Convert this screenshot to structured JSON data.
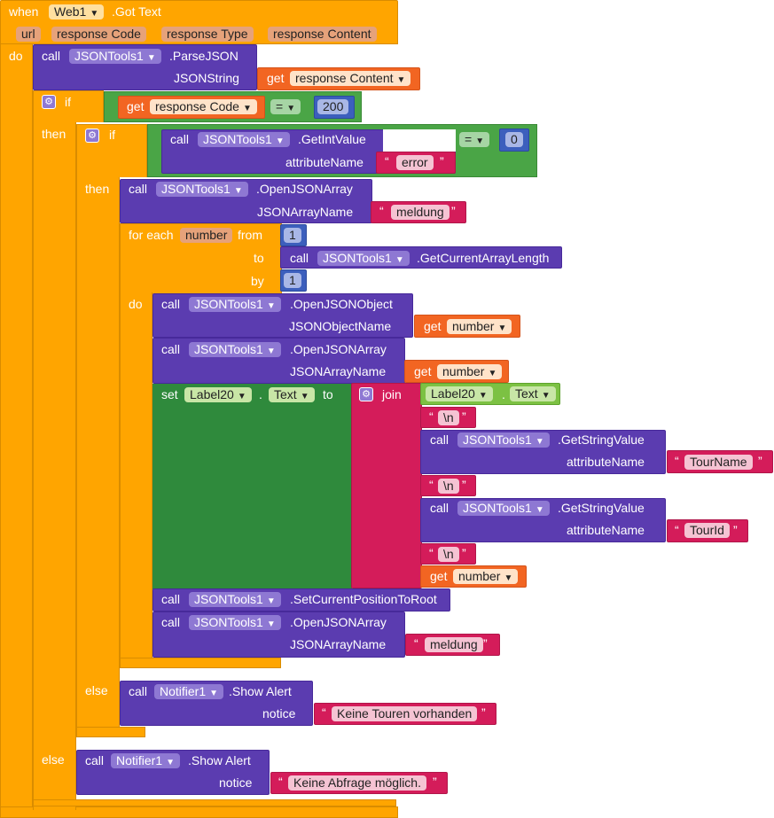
{
  "event": {
    "when": "when",
    "component": "Web1",
    "event_name": ".Got Text",
    "params": [
      "url",
      "response Code",
      "response Type",
      "response Content"
    ],
    "do": "do"
  },
  "parse": {
    "call": "call",
    "component": "JSONTools1",
    "method": ".ParseJSON",
    "arg_label": "JSONString",
    "get": "get",
    "get_var": "response Content"
  },
  "if1": {
    "if": "if",
    "then": "then",
    "else": "else",
    "get": "get",
    "get_var": "response Code",
    "op": "=",
    "value": "200"
  },
  "if2": {
    "if": "if",
    "then": "then",
    "else": "else",
    "call": "call",
    "component": "JSONTools1",
    "method": ".GetIntValue",
    "arg_label": "attributeName",
    "arg_value": "error",
    "op": "=",
    "value": "0"
  },
  "open_array1": {
    "call": "call",
    "component": "JSONTools1",
    "method": ".OpenJSONArray",
    "arg_label": "JSONArrayName",
    "arg_value": "meldung"
  },
  "loop": {
    "for_each": "for each",
    "var": "number",
    "from_label": "from",
    "from": "1",
    "to_label": "to",
    "to_call": "call",
    "to_component": "JSONTools1",
    "to_method": ".GetCurrentArrayLength",
    "by_label": "by",
    "by": "1",
    "do": "do"
  },
  "open_obj": {
    "call": "call",
    "component": "JSONTools1",
    "method": ".OpenJSONObject",
    "arg_label": "JSONObjectName",
    "get": "get",
    "get_var": "number"
  },
  "open_array2": {
    "call": "call",
    "component": "JSONTools1",
    "method": ".OpenJSONArray",
    "arg_label": "JSONArrayName",
    "get": "get",
    "get_var": "number"
  },
  "set": {
    "set": "set",
    "component": "Label20",
    "dot": ".",
    "prop": "Text",
    "to": "to",
    "join": "join",
    "getter_component": "Label20",
    "getter_prop": "Text",
    "newline": "\\n",
    "call": "call",
    "gsv_component": "JSONTools1",
    "gsv_method": ".GetStringValue",
    "gsv_arg_label": "attributeName",
    "tourname": "TourName",
    "tourid": "TourId",
    "get": "get",
    "get_var": "number"
  },
  "reset_pos": {
    "call": "call",
    "component": "JSONTools1",
    "method": ".SetCurrentPositionToRoot"
  },
  "open_array3": {
    "call": "call",
    "component": "JSONTools1",
    "method": ".OpenJSONArray",
    "arg_label": "JSONArrayName",
    "arg_value": "meldung"
  },
  "alert_inner": {
    "call": "call",
    "component": "Notifier1",
    "method": ".Show Alert",
    "arg_label": "notice",
    "arg_value": "Keine Touren vorhanden"
  },
  "alert_outer": {
    "call": "call",
    "component": "Notifier1",
    "method": ".Show Alert",
    "arg_label": "notice",
    "arg_value": "Keine Abfrage möglich."
  },
  "icons": {
    "dropdown": "▼",
    "gear": "⚙",
    "quote_open": "“",
    "quote_close": "”"
  },
  "colors": {
    "event": "#ffa500",
    "procedure": "#5b3cb0",
    "getter": "#f26522",
    "logic": "#4aa546",
    "math": "#3c5fbd",
    "text": "#d41c5a",
    "setter": "#2f8a3c"
  }
}
